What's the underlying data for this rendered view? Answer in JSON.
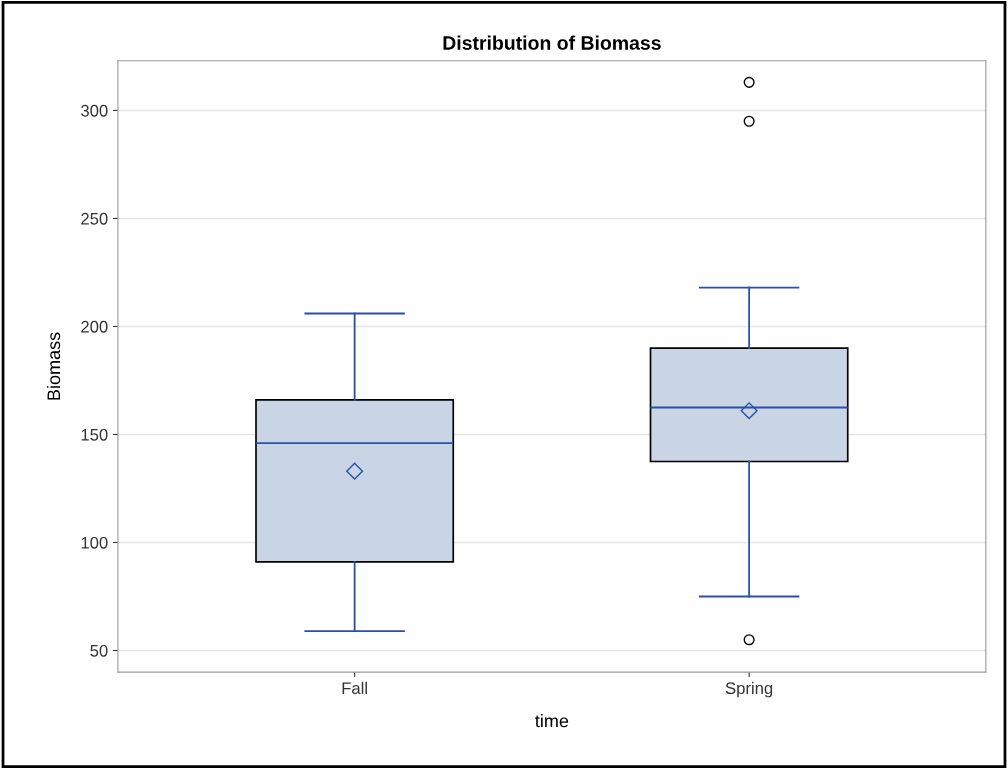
{
  "chart_data": {
    "type": "box",
    "title": "Distribution of Biomass",
    "xlabel": "time",
    "ylabel": "Biomass",
    "categories": [
      "Fall",
      "Spring"
    ],
    "boxes": [
      {
        "low": 59,
        "q1": 91,
        "median": 146,
        "q3": 166,
        "high": 206,
        "mean": 133
      },
      {
        "low": 75,
        "q1": 137.5,
        "median": 162.5,
        "q3": 190,
        "high": 218,
        "mean": 161,
        "outliers": [
          55,
          295,
          313
        ]
      }
    ],
    "color": "#c9d5e5",
    "ylim": [
      40,
      323
    ],
    "yticks": [
      50,
      100,
      150,
      200,
      250,
      300
    ],
    "grid": "y"
  }
}
